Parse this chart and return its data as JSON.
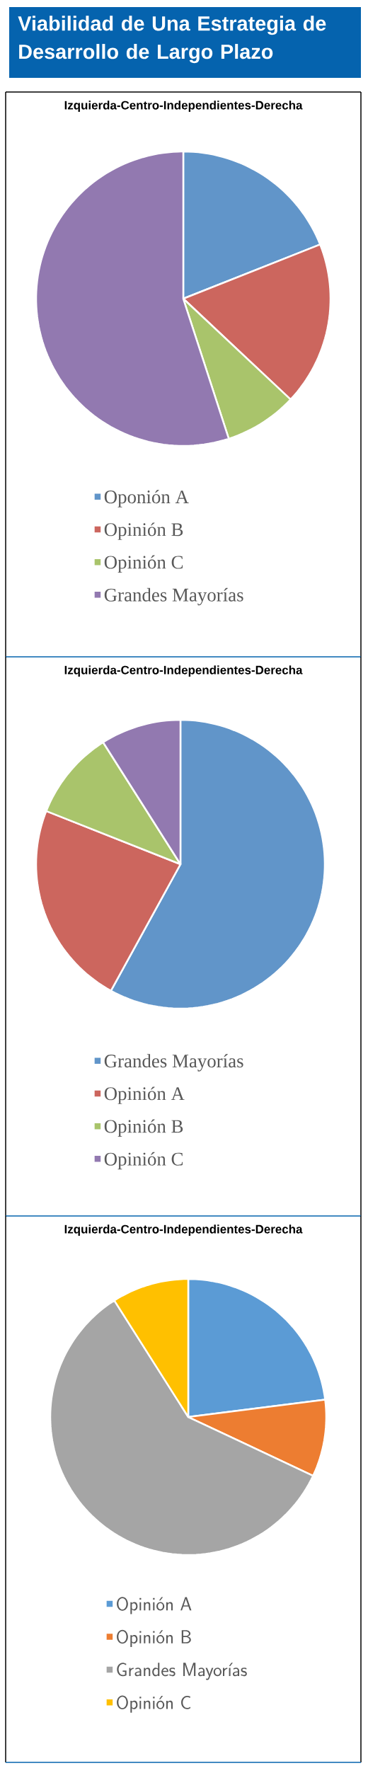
{
  "chart_data": [
    {
      "type": "pie",
      "title": "Viabilidad de Una Estrategia de Desarrollo de Largo Plazo",
      "subtitle": "Izquierda-Centro-Independientes-Derecha",
      "categories": [
        "Oponión A",
        "Opinión B",
        "Opinión C",
        "Grandes Mayorías"
      ],
      "values": [
        19,
        18,
        8,
        55
      ],
      "colors": [
        "#6195c9",
        "#cc665e",
        "#a9c46b",
        "#9279b0"
      ],
      "legend": "bottom"
    },
    {
      "type": "pie",
      "subtitle": "Izquierda-Centro-Independientes-Derecha",
      "categories": [
        "Grandes Mayorías",
        "Opinión A",
        "Opinión B",
        "Opinión C"
      ],
      "values": [
        58,
        23,
        10,
        9
      ],
      "colors": [
        "#6195c9",
        "#cc665e",
        "#a9c46b",
        "#9279b0"
      ],
      "legend": "bottom"
    },
    {
      "type": "pie",
      "subtitle": "Izquierda-Centro-Independientes-Derecha",
      "categories": [
        "Opinión A",
        "Opinión B",
        "Grandes Mayorías",
        "Opinión C"
      ],
      "values": [
        23,
        9,
        59,
        9
      ],
      "colors": [
        "#5b9bd5",
        "#ed7d31",
        "#a5a5a5",
        "#ffc000"
      ],
      "legend": "bottom"
    }
  ]
}
